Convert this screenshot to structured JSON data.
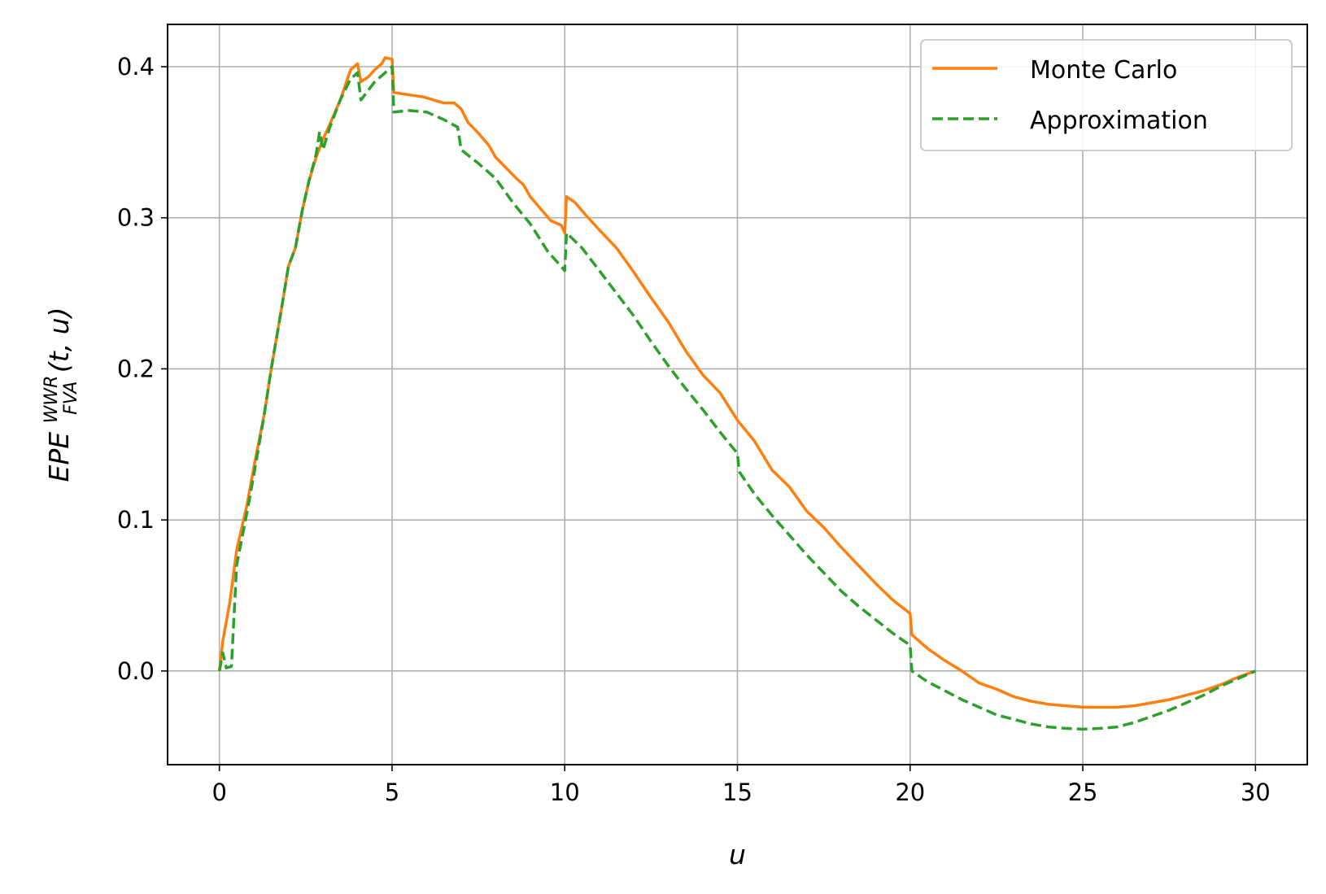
{
  "chart_data": {
    "type": "line",
    "title": "",
    "xlabel": "u",
    "ylabel": {
      "base": "EPE",
      "superscript": "WWR",
      "subscript": "FVA",
      "suffix": "(t, u)"
    },
    "xlim": [
      -1.5,
      31.5
    ],
    "ylim": [
      -0.062,
      0.428
    ],
    "xticks": [
      0,
      5,
      10,
      15,
      20,
      25,
      30
    ],
    "xtick_labels": [
      "0",
      "5",
      "10",
      "15",
      "20",
      "25",
      "30"
    ],
    "yticks": [
      0.0,
      0.1,
      0.2,
      0.3,
      0.4
    ],
    "ytick_labels": [
      "0.0",
      "0.1",
      "0.2",
      "0.3",
      "0.4"
    ],
    "grid": true,
    "legend_position": "top-right",
    "series": [
      {
        "name": "Monte Carlo",
        "color": "#ff7f0e",
        "style": "solid",
        "x": [
          0,
          0.1,
          0.3,
          0.5,
          0.8,
          1.0,
          1.3,
          1.5,
          1.8,
          2.0,
          2.2,
          2.4,
          2.6,
          2.8,
          3.0,
          3.2,
          3.5,
          3.8,
          4.0,
          4.1,
          4.3,
          4.5,
          4.7,
          4.8,
          5.0,
          5.05,
          5.3,
          5.6,
          5.9,
          6.2,
          6.5,
          6.8,
          7.0,
          7.2,
          7.5,
          7.8,
          8.0,
          8.3,
          8.6,
          8.8,
          9.0,
          9.3,
          9.6,
          9.9,
          10.0,
          10.05,
          10.3,
          10.6,
          11.0,
          11.5,
          12.0,
          12.5,
          13.0,
          13.5,
          14.0,
          14.5,
          15.0,
          15.5,
          16.0,
          16.5,
          17.0,
          17.5,
          18.0,
          18.5,
          19.0,
          19.5,
          20.0,
          20.05,
          20.5,
          21.0,
          21.5,
          22.0,
          22.5,
          23.0,
          23.5,
          24.0,
          24.5,
          25.0,
          25.5,
          26.0,
          26.5,
          27.0,
          27.5,
          28.0,
          28.5,
          29.0,
          29.5,
          30.0
        ],
        "y": [
          0.0,
          0.02,
          0.045,
          0.08,
          0.11,
          0.135,
          0.17,
          0.2,
          0.24,
          0.268,
          0.28,
          0.305,
          0.325,
          0.34,
          0.352,
          0.362,
          0.378,
          0.398,
          0.402,
          0.39,
          0.393,
          0.398,
          0.402,
          0.406,
          0.405,
          0.383,
          0.382,
          0.381,
          0.38,
          0.378,
          0.376,
          0.376,
          0.372,
          0.363,
          0.356,
          0.348,
          0.34,
          0.333,
          0.326,
          0.322,
          0.314,
          0.306,
          0.298,
          0.295,
          0.29,
          0.314,
          0.31,
          0.302,
          0.292,
          0.28,
          0.264,
          0.247,
          0.231,
          0.212,
          0.196,
          0.184,
          0.166,
          0.152,
          0.133,
          0.122,
          0.106,
          0.095,
          0.082,
          0.07,
          0.058,
          0.047,
          0.038,
          0.024,
          0.015,
          0.007,
          0.0,
          -0.008,
          -0.012,
          -0.017,
          -0.02,
          -0.022,
          -0.023,
          -0.024,
          -0.024,
          -0.024,
          -0.023,
          -0.021,
          -0.019,
          -0.016,
          -0.013,
          -0.009,
          -0.004,
          0.0
        ]
      },
      {
        "name": "Approximation",
        "color": "#2ca02c",
        "style": "dashed",
        "x": [
          0,
          0.1,
          0.2,
          0.35,
          0.5,
          0.8,
          1.0,
          1.3,
          1.5,
          1.8,
          2.0,
          2.2,
          2.4,
          2.6,
          2.8,
          2.9,
          3.0,
          3.2,
          3.5,
          3.8,
          4.0,
          4.1,
          4.3,
          4.5,
          4.7,
          5.0,
          5.05,
          5.5,
          6.0,
          6.5,
          6.9,
          7.0,
          7.5,
          8.0,
          8.5,
          9.0,
          9.5,
          10.0,
          10.05,
          10.5,
          11.0,
          11.5,
          12.0,
          12.5,
          13.0,
          13.5,
          14.0,
          14.5,
          15.0,
          15.05,
          15.5,
          16.0,
          16.5,
          17.0,
          17.5,
          18.0,
          18.5,
          19.0,
          19.5,
          20.0,
          20.05,
          20.5,
          21.0,
          21.5,
          22.0,
          22.5,
          23.0,
          23.5,
          24.0,
          24.5,
          25.0,
          25.5,
          26.0,
          26.5,
          27.0,
          27.5,
          28.0,
          28.5,
          29.0,
          29.5,
          30.0
        ],
        "y": [
          0.0,
          0.012,
          0.002,
          0.003,
          0.07,
          0.105,
          0.13,
          0.17,
          0.2,
          0.24,
          0.268,
          0.28,
          0.305,
          0.325,
          0.342,
          0.357,
          0.345,
          0.36,
          0.378,
          0.392,
          0.396,
          0.378,
          0.384,
          0.39,
          0.394,
          0.4,
          0.37,
          0.371,
          0.37,
          0.365,
          0.36,
          0.345,
          0.336,
          0.326,
          0.31,
          0.296,
          0.278,
          0.265,
          0.29,
          0.28,
          0.265,
          0.25,
          0.235,
          0.218,
          0.202,
          0.187,
          0.173,
          0.158,
          0.144,
          0.132,
          0.117,
          0.103,
          0.09,
          0.077,
          0.065,
          0.053,
          0.043,
          0.034,
          0.025,
          0.017,
          0.0,
          -0.007,
          -0.013,
          -0.019,
          -0.024,
          -0.029,
          -0.032,
          -0.035,
          -0.037,
          -0.038,
          -0.0385,
          -0.038,
          -0.037,
          -0.034,
          -0.03,
          -0.026,
          -0.021,
          -0.016,
          -0.01,
          -0.005,
          0.0
        ]
      }
    ]
  }
}
